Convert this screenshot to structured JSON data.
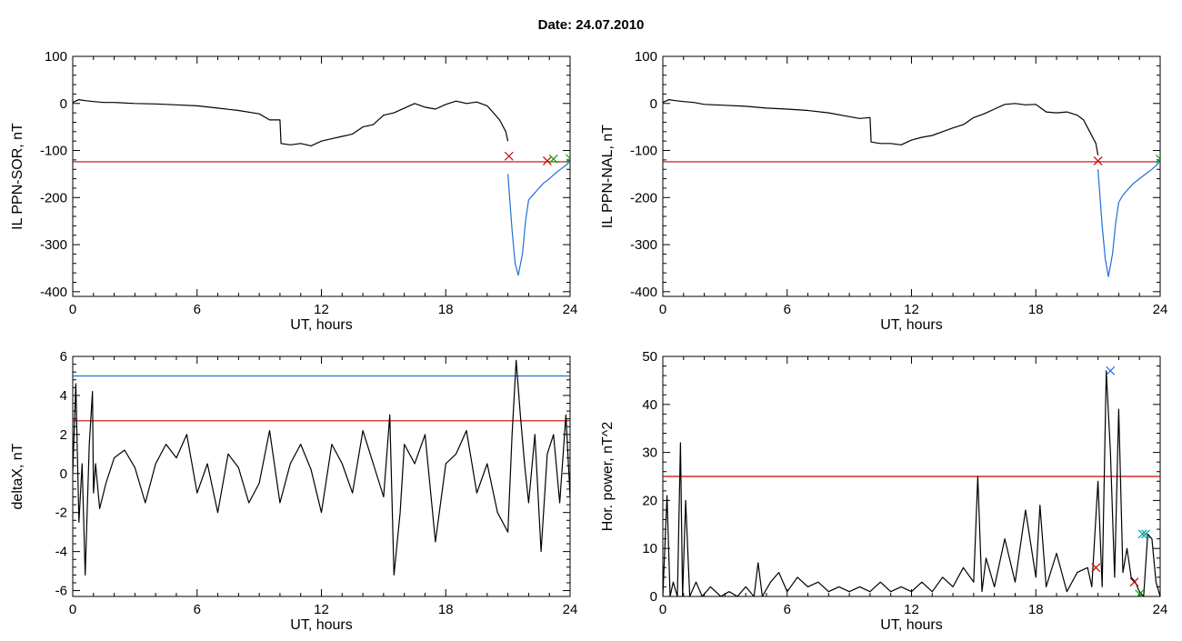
{
  "header": {
    "date_label": "Date:  24.07.2010"
  },
  "colors": {
    "threshold_red": "#cc0000",
    "threshold_blue": "#1f6fd6",
    "storm_blue": "#1f6fd6",
    "marker_green": "#00aa00",
    "marker_cyan": "#00a0a0"
  },
  "chart_data": [
    {
      "id": "sor",
      "type": "line",
      "xlabel": "UT, hours",
      "ylabel": "IL PPN-SOR, nT",
      "xlim": [
        0,
        24
      ],
      "ylim": [
        -410,
        100
      ],
      "xticks": [
        0,
        6,
        12,
        18,
        24
      ],
      "xtick_labels": [
        "0",
        "6",
        "12",
        "18",
        "24"
      ],
      "yticks": [
        100,
        0,
        -100,
        -200,
        -300,
        -400
      ],
      "ytick_labels": [
        "100",
        "0",
        "-100",
        "-200",
        "-300",
        "-400"
      ],
      "grid": false,
      "series": [
        {
          "color": "#000000",
          "x": [
            0,
            0.3,
            0.6,
            1.0,
            1.5,
            2,
            3,
            4,
            5,
            6,
            7,
            8,
            9,
            9.5,
            10,
            10.05,
            10.5,
            11,
            11.5,
            12,
            12.5,
            13,
            13.5,
            14,
            14.5,
            15,
            15.5,
            16,
            16.5,
            17,
            17.5,
            18,
            18.5,
            19,
            19.5,
            20,
            20.3,
            20.6,
            20.9,
            21.0
          ],
          "y": [
            2,
            8,
            6,
            4,
            2,
            2,
            0,
            -1,
            -3,
            -5,
            -10,
            -15,
            -22,
            -35,
            -35,
            -85,
            -88,
            -85,
            -90,
            -80,
            -75,
            -70,
            -65,
            -50,
            -45,
            -25,
            -20,
            -10,
            0,
            -8,
            -12,
            -2,
            5,
            0,
            3,
            -5,
            -20,
            -35,
            -60,
            -80
          ]
        },
        {
          "color": "#1f6fd6",
          "x": [
            21.0,
            21.2,
            21.35,
            21.5,
            21.7,
            21.85,
            22.0,
            22.2,
            22.4,
            22.7,
            23.0,
            23.3,
            23.6,
            23.9,
            24
          ],
          "y": [
            -150,
            -270,
            -340,
            -365,
            -320,
            -250,
            -205,
            -195,
            -185,
            -170,
            -160,
            -148,
            -138,
            -128,
            -115
          ]
        }
      ],
      "hlines": [
        {
          "y": -124,
          "color": "#cc0000"
        }
      ],
      "markers": [
        {
          "x": 21.05,
          "y": -112,
          "color": "#cc0000",
          "symbol": "x"
        },
        {
          "x": 22.9,
          "y": -122,
          "color": "#cc0000",
          "symbol": "x"
        },
        {
          "x": 23.2,
          "y": -118,
          "color": "#00aa00",
          "symbol": "x"
        },
        {
          "x": 24.0,
          "y": -117,
          "color": "#00aa00",
          "symbol": "x"
        }
      ]
    },
    {
      "id": "nal",
      "type": "line",
      "xlabel": "UT, hours",
      "ylabel": "IL PPN-NAL, nT",
      "xlim": [
        0,
        24
      ],
      "ylim": [
        -410,
        100
      ],
      "xticks": [
        0,
        6,
        12,
        18,
        24
      ],
      "xtick_labels": [
        "0",
        "6",
        "12",
        "18",
        "24"
      ],
      "yticks": [
        100,
        0,
        -100,
        -200,
        -300,
        -400
      ],
      "ytick_labels": [
        "100",
        "0",
        "-100",
        "-200",
        "-300",
        "-400"
      ],
      "grid": false,
      "series": [
        {
          "color": "#000000",
          "x": [
            0,
            0.3,
            0.6,
            1.0,
            1.5,
            2,
            3,
            4,
            5,
            6,
            7,
            8,
            9,
            9.5,
            10,
            10.05,
            10.5,
            11,
            11.5,
            12,
            12.5,
            13,
            13.5,
            14,
            14.5,
            15,
            15.5,
            16,
            16.5,
            17,
            17.5,
            18,
            18.5,
            19,
            19.5,
            20,
            20.3,
            20.6,
            20.9,
            21.0
          ],
          "y": [
            2,
            8,
            6,
            4,
            2,
            -2,
            -4,
            -6,
            -10,
            -12,
            -15,
            -20,
            -28,
            -32,
            -30,
            -82,
            -85,
            -85,
            -88,
            -78,
            -72,
            -68,
            -60,
            -52,
            -45,
            -30,
            -22,
            -12,
            -2,
            0,
            -3,
            -2,
            -18,
            -20,
            -18,
            -25,
            -35,
            -60,
            -85,
            -110
          ]
        },
        {
          "color": "#1f6fd6",
          "x": [
            21.0,
            21.2,
            21.35,
            21.5,
            21.7,
            21.85,
            22.0,
            22.2,
            22.4,
            22.7,
            23.0,
            23.3,
            23.6,
            23.9,
            24
          ],
          "y": [
            -140,
            -260,
            -330,
            -368,
            -320,
            -255,
            -210,
            -195,
            -185,
            -170,
            -160,
            -150,
            -140,
            -128,
            -118
          ]
        }
      ],
      "hlines": [
        {
          "y": -124,
          "color": "#cc0000"
        }
      ],
      "markers": [
        {
          "x": 21.0,
          "y": -122,
          "color": "#cc0000",
          "symbol": "x"
        },
        {
          "x": 24.0,
          "y": -118,
          "color": "#00aa00",
          "symbol": "x"
        }
      ]
    },
    {
      "id": "deltax",
      "type": "line",
      "xlabel": "UT, hours",
      "ylabel": "deltaX, nT",
      "xlim": [
        0,
        24
      ],
      "ylim": [
        -6.3,
        6
      ],
      "xticks": [
        0,
        6,
        12,
        18,
        24
      ],
      "xtick_labels": [
        "0",
        "6",
        "12",
        "18",
        "24"
      ],
      "yticks": [
        6,
        4,
        2,
        0,
        -2,
        -4,
        -6
      ],
      "ytick_labels": [
        "6",
        "4",
        "2",
        "0",
        "-2",
        "-4",
        "-6"
      ],
      "grid": false,
      "series": [
        {
          "color": "#000000",
          "x": [
            0,
            0.15,
            0.3,
            0.45,
            0.6,
            0.8,
            0.95,
            1.0,
            1.1,
            1.3,
            1.6,
            2,
            2.5,
            3,
            3.5,
            4,
            4.5,
            5,
            5.5,
            6,
            6.5,
            7,
            7.5,
            8,
            8.5,
            9,
            9.5,
            10,
            10.5,
            11,
            11.5,
            12,
            12.5,
            13,
            13.5,
            14,
            14.5,
            15,
            15.3,
            15.5,
            15.8,
            16,
            16.5,
            17,
            17.5,
            18,
            18.5,
            19,
            19.5,
            20,
            20.5,
            21,
            21.2,
            21.4,
            21.6,
            21.8,
            22,
            22.3,
            22.6,
            22.9,
            23.2,
            23.5,
            23.8,
            24
          ],
          "y": [
            0,
            4.6,
            -2.5,
            0.5,
            -5.2,
            1.5,
            4.2,
            -1.0,
            0.5,
            -1.8,
            -0.5,
            0.8,
            1.2,
            0.3,
            -1.5,
            0.5,
            1.5,
            0.8,
            2.0,
            -1.0,
            0.5,
            -2.0,
            1.0,
            0.3,
            -1.5,
            -0.5,
            2.2,
            -1.5,
            0.5,
            1.5,
            0.2,
            -2.0,
            1.5,
            0.5,
            -1.0,
            2.2,
            0.5,
            -1.2,
            3.0,
            -5.2,
            -2.0,
            1.5,
            0.5,
            2.0,
            -3.5,
            0.5,
            1.0,
            2.2,
            -1.0,
            0.5,
            -2.0,
            -3.0,
            2.0,
            5.8,
            3.0,
            0.5,
            -1.5,
            2.0,
            -4.0,
            1.0,
            2.0,
            -1.5,
            3.0,
            -1.2
          ]
        }
      ],
      "hlines": [
        {
          "y": 5.0,
          "color": "#1f6fd6"
        },
        {
          "y": 2.7,
          "color": "#cc0000"
        }
      ],
      "markers": []
    },
    {
      "id": "hor-power",
      "type": "line",
      "xlabel": "UT, hours",
      "ylabel": "Hor. power, nT^2",
      "xlim": [
        0,
        24
      ],
      "ylim": [
        0,
        50
      ],
      "xticks": [
        0,
        6,
        12,
        18,
        24
      ],
      "xtick_labels": [
        "0",
        "6",
        "12",
        "18",
        "24"
      ],
      "yticks": [
        50,
        40,
        30,
        20,
        10,
        0
      ],
      "ytick_labels": [
        "50",
        "40",
        "30",
        "20",
        "10",
        "0"
      ],
      "grid": false,
      "series": [
        {
          "color": "#000000",
          "x": [
            0,
            0.2,
            0.35,
            0.5,
            0.7,
            0.85,
            0.95,
            1.1,
            1.3,
            1.6,
            1.9,
            2.3,
            2.8,
            3.2,
            3.6,
            4,
            4.4,
            4.6,
            4.8,
            5.2,
            5.6,
            6,
            6.5,
            7,
            7.5,
            8,
            8.5,
            9,
            9.5,
            10,
            10.5,
            11,
            11.5,
            12,
            12.5,
            13,
            13.5,
            14,
            14.5,
            15,
            15.2,
            15.4,
            15.6,
            16,
            16.5,
            17,
            17.5,
            18,
            18.2,
            18.5,
            19,
            19.5,
            20,
            20.5,
            20.7,
            21,
            21.2,
            21.4,
            21.6,
            21.8,
            22,
            22.2,
            22.4,
            22.6,
            22.8,
            23,
            23.2,
            23.4,
            23.6,
            23.8,
            24
          ],
          "y": [
            0,
            21,
            0,
            3,
            0,
            32,
            0,
            20,
            0,
            3,
            0,
            2,
            0,
            1,
            0,
            2,
            0,
            7,
            0,
            3,
            5,
            1,
            4,
            2,
            3,
            1,
            2,
            1,
            2,
            1,
            3,
            1,
            2,
            1,
            3,
            1,
            4,
            2,
            6,
            3,
            25,
            1,
            8,
            2,
            12,
            3,
            18,
            4,
            19,
            2,
            9,
            1,
            5,
            6,
            2,
            24,
            2,
            47,
            30,
            4,
            39,
            5,
            10,
            4,
            3,
            1,
            0,
            13,
            12,
            3,
            0
          ]
        }
      ],
      "hlines": [
        {
          "y": 25,
          "color": "#cc0000"
        }
      ],
      "markers": [
        {
          "x": 20.9,
          "y": 6,
          "color": "#cc0000",
          "symbol": "x"
        },
        {
          "x": 21.6,
          "y": 47,
          "color": "#1f6fd6",
          "symbol": "x"
        },
        {
          "x": 22.75,
          "y": 3,
          "color": "#cc0000",
          "symbol": "x"
        },
        {
          "x": 23.0,
          "y": 0.5,
          "color": "#00aa00",
          "symbol": "x"
        },
        {
          "x": 23.15,
          "y": 13,
          "color": "#00a0a0",
          "symbol": "x"
        },
        {
          "x": 23.3,
          "y": 13,
          "color": "#00a0a0",
          "symbol": "x"
        }
      ]
    }
  ]
}
